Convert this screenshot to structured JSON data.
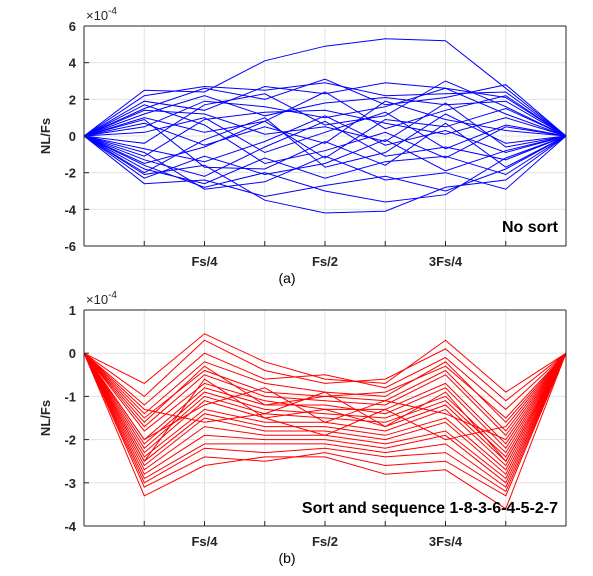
{
  "chart_data": [
    {
      "type": "line",
      "panel_label": "(a)",
      "annotation": "No sort",
      "exponent_label": "×10",
      "exponent_power": "-4",
      "ylabel": "NL/Fs",
      "xlabel": "",
      "ylim": [
        -6,
        6
      ],
      "yticks": [
        -6,
        -4,
        -2,
        0,
        2,
        4,
        6
      ],
      "xlim": [
        0,
        8
      ],
      "xticks": [
        0,
        1,
        2,
        3,
        4,
        5,
        6,
        7,
        8
      ],
      "xtick_labels": {
        "2": "Fs/4",
        "4": "Fs/2",
        "6": "3Fs/4"
      },
      "grid": true,
      "line_color": "#0000ff",
      "x": [
        0,
        1,
        2,
        3,
        4,
        5,
        6,
        7,
        8
      ],
      "series": [
        {
          "values": [
            0,
            2.5,
            2.4,
            4.1,
            4.9,
            5.3,
            5.2,
            2.6,
            0
          ]
        },
        {
          "values": [
            0,
            2.2,
            2.7,
            2.5,
            2.9,
            2.2,
            2.3,
            2.4,
            0
          ]
        },
        {
          "values": [
            0,
            1.5,
            2.6,
            2.0,
            3.1,
            1.7,
            2.1,
            2.8,
            0
          ]
        },
        {
          "values": [
            0,
            1.9,
            1.4,
            2.7,
            2.3,
            2.9,
            2.6,
            2.1,
            0
          ]
        },
        {
          "values": [
            0,
            1.2,
            2.2,
            1.1,
            1.8,
            2.1,
            1.7,
            1.9,
            0
          ]
        },
        {
          "values": [
            0,
            0.5,
            1.9,
            1.6,
            1.0,
            1.6,
            2.6,
            1.2,
            0
          ]
        },
        {
          "values": [
            0,
            -0.4,
            1.7,
            2.3,
            0.6,
            1.1,
            3.0,
            1.6,
            0
          ]
        },
        {
          "values": [
            0,
            1.0,
            0.2,
            0.8,
            2.4,
            0.4,
            1.4,
            2.2,
            0
          ]
        },
        {
          "values": [
            0,
            -1.1,
            0.9,
            1.3,
            1.4,
            0.7,
            0.1,
            1.0,
            0
          ]
        },
        {
          "values": [
            0,
            0.7,
            -0.5,
            0.5,
            -0.4,
            1.9,
            0.9,
            0.3,
            0
          ]
        },
        {
          "values": [
            0,
            1.4,
            1.2,
            0.1,
            0.5,
            -0.3,
            1.8,
            -0.6,
            0
          ]
        },
        {
          "values": [
            0,
            -1.5,
            -0.6,
            0.8,
            -1.2,
            0.9,
            0.5,
            1.5,
            0
          ]
        },
        {
          "values": [
            0,
            0.2,
            1.0,
            -0.9,
            0.2,
            1.3,
            -0.7,
            0.6,
            0
          ]
        },
        {
          "values": [
            0,
            -0.7,
            -1.4,
            -0.3,
            1.1,
            -0.5,
            0.3,
            -0.9,
            0
          ]
        },
        {
          "values": [
            0,
            1.7,
            0.6,
            -1.5,
            -0.8,
            0.2,
            -1.2,
            0.5,
            0
          ]
        },
        {
          "values": [
            0,
            -2.0,
            -0.2,
            1.0,
            -1.7,
            -0.9,
            1.2,
            -0.4,
            0
          ]
        },
        {
          "values": [
            0,
            -1.3,
            -2.2,
            -0.6,
            0.8,
            -1.1,
            -0.6,
            -1.3,
            0
          ]
        },
        {
          "values": [
            0,
            0.9,
            -1.7,
            -1.8,
            -0.3,
            -1.6,
            0.7,
            -1.7,
            0
          ]
        },
        {
          "values": [
            0,
            -2.3,
            -1.1,
            -2.1,
            -1.5,
            -0.2,
            -1.9,
            -0.8,
            0
          ]
        },
        {
          "values": [
            0,
            -1.8,
            -2.6,
            -1.2,
            -2.3,
            -1.4,
            -1.1,
            -2.1,
            0
          ]
        },
        {
          "values": [
            0,
            -0.9,
            -2.9,
            -2.5,
            -1.1,
            -2.4,
            -2.0,
            -2.9,
            0
          ]
        },
        {
          "values": [
            0,
            -2.6,
            -2.4,
            -3.3,
            -2.7,
            -2.2,
            -3.0,
            -1.8,
            0
          ]
        },
        {
          "values": [
            0,
            -2.1,
            -1.6,
            -3.5,
            -4.2,
            -4.1,
            -2.8,
            -2.4,
            0
          ]
        },
        {
          "values": [
            0,
            -1.6,
            -2.8,
            -2.0,
            -3.0,
            -3.6,
            -3.2,
            -1.2,
            0
          ]
        }
      ]
    },
    {
      "type": "line",
      "panel_label": "(b)",
      "annotation": "Sort and sequence 1-8-3-6-4-5-2-7",
      "exponent_label": "×10",
      "exponent_power": "-4",
      "ylabel": "NL/Fs",
      "xlabel": "",
      "ylim": [
        -4,
        1
      ],
      "yticks": [
        -4,
        -3,
        -2,
        -1,
        0,
        1
      ],
      "xlim": [
        0,
        8
      ],
      "xticks": [
        0,
        1,
        2,
        3,
        4,
        5,
        6,
        7,
        8
      ],
      "xtick_labels": {
        "2": "Fs/4",
        "4": "Fs/2",
        "6": "3Fs/4"
      },
      "grid": true,
      "line_color": "#ff0000",
      "x": [
        0,
        1,
        2,
        3,
        4,
        5,
        6,
        7,
        8
      ],
      "series": [
        {
          "values": [
            0,
            -0.7,
            0.45,
            -0.2,
            -0.6,
            -0.7,
            0.3,
            -0.9,
            0
          ]
        },
        {
          "values": [
            0,
            -1.0,
            0.3,
            -0.4,
            -0.7,
            -0.6,
            0.1,
            -1.1,
            0
          ]
        },
        {
          "values": [
            0,
            -1.2,
            0.0,
            -0.6,
            -0.5,
            -0.8,
            -0.1,
            -1.3,
            0
          ]
        },
        {
          "values": [
            0,
            -1.4,
            -0.2,
            -0.7,
            -0.9,
            -1.0,
            -0.2,
            -1.6,
            0
          ]
        },
        {
          "values": [
            0,
            -1.5,
            -0.4,
            -0.9,
            -1.0,
            -1.1,
            -0.4,
            -1.8,
            0
          ]
        },
        {
          "values": [
            0,
            -1.7,
            -0.5,
            -1.0,
            -1.1,
            -1.2,
            -0.5,
            -1.9,
            0
          ]
        },
        {
          "values": [
            0,
            -1.8,
            -0.7,
            -1.1,
            -1.3,
            -1.3,
            -0.7,
            -2.1,
            0
          ]
        },
        {
          "values": [
            0,
            -2.0,
            -0.8,
            -1.2,
            -1.2,
            -1.4,
            -0.8,
            -2.2,
            0
          ]
        },
        {
          "values": [
            0,
            -2.1,
            -0.9,
            -1.3,
            -1.4,
            -1.5,
            -1.0,
            -2.3,
            0
          ]
        },
        {
          "values": [
            0,
            -2.2,
            -1.0,
            -1.4,
            -1.5,
            -1.6,
            -1.1,
            -2.4,
            0
          ]
        },
        {
          "values": [
            0,
            -2.3,
            -1.1,
            -1.5,
            -1.3,
            -1.7,
            -1.2,
            -2.5,
            0
          ]
        },
        {
          "values": [
            0,
            -2.4,
            -1.3,
            -1.6,
            -1.6,
            -1.8,
            -1.3,
            -2.6,
            0
          ]
        },
        {
          "values": [
            0,
            -2.5,
            -1.4,
            -1.7,
            -1.7,
            -1.9,
            -1.5,
            -2.7,
            0
          ]
        },
        {
          "values": [
            0,
            -2.6,
            -1.5,
            -1.8,
            -1.8,
            -2.0,
            -1.6,
            -2.8,
            0
          ]
        },
        {
          "values": [
            0,
            -2.7,
            -1.7,
            -1.9,
            -1.9,
            -2.1,
            -1.8,
            -2.9,
            0
          ]
        },
        {
          "values": [
            0,
            -2.8,
            -1.9,
            -2.0,
            -2.0,
            -2.2,
            -1.9,
            -3.0,
            0
          ]
        },
        {
          "values": [
            0,
            -2.9,
            -2.1,
            -2.1,
            -2.1,
            -2.3,
            -2.1,
            -3.1,
            0
          ]
        },
        {
          "values": [
            0,
            -3.0,
            -2.2,
            -2.3,
            -2.2,
            -2.4,
            -2.3,
            -3.2,
            0
          ]
        },
        {
          "values": [
            0,
            -3.1,
            -2.4,
            -2.5,
            -2.3,
            -2.6,
            -2.5,
            -3.3,
            0
          ]
        },
        {
          "values": [
            0,
            -3.3,
            -2.6,
            -2.4,
            -2.4,
            -2.8,
            -2.7,
            -3.6,
            0
          ]
        },
        {
          "values": [
            0,
            -1.6,
            -0.3,
            -1.2,
            -1.0,
            -0.9,
            -0.3,
            -1.5,
            0
          ]
        },
        {
          "values": [
            0,
            -2.0,
            -1.2,
            -0.8,
            -1.6,
            -1.1,
            -1.4,
            -2.0,
            0
          ]
        },
        {
          "values": [
            0,
            -1.3,
            -1.6,
            -1.4,
            -0.9,
            -1.7,
            -0.9,
            -2.5,
            0
          ]
        },
        {
          "values": [
            0,
            -2.5,
            -0.6,
            -1.5,
            -1.9,
            -1.3,
            -2.0,
            -1.7,
            0
          ]
        }
      ]
    }
  ]
}
